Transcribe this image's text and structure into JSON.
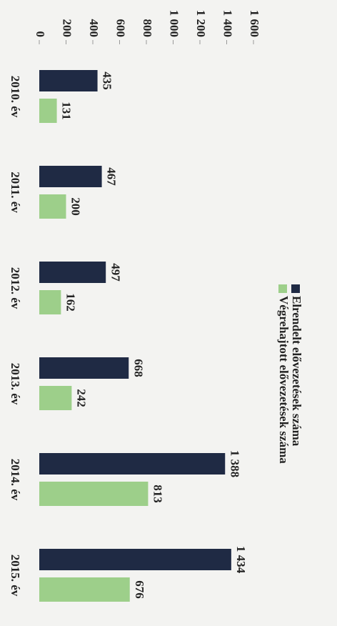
{
  "chart_data": {
    "type": "bar",
    "categories": [
      "2010. év",
      "2011. év",
      "2012. év",
      "2013. év",
      "2014. év",
      "2015. év"
    ],
    "series": [
      {
        "name": "Elrendelt elővezetések száma",
        "color": "#1f2a44",
        "values": [
          435,
          467,
          497,
          668,
          1388,
          1434
        ],
        "value_labels": [
          "435",
          "467",
          "497",
          "668",
          "1 388",
          "1 434"
        ]
      },
      {
        "name": "Végrehajtott elővezetések száma",
        "color": "#9dcf8a",
        "values": [
          131,
          200,
          162,
          242,
          813,
          676
        ]
      }
    ],
    "ylim": [
      0,
      1600
    ],
    "yticks": [
      0,
      200,
      400,
      600,
      800,
      {
        "value": 1000,
        "label": "1 000"
      },
      {
        "value": 1200,
        "label": "1 200"
      },
      {
        "value": 1400,
        "label": "1 400"
      },
      {
        "value": 1600,
        "label": "1 600"
      }
    ],
    "grid": false,
    "legend": "top",
    "orientation": "rotated-clockwise"
  }
}
